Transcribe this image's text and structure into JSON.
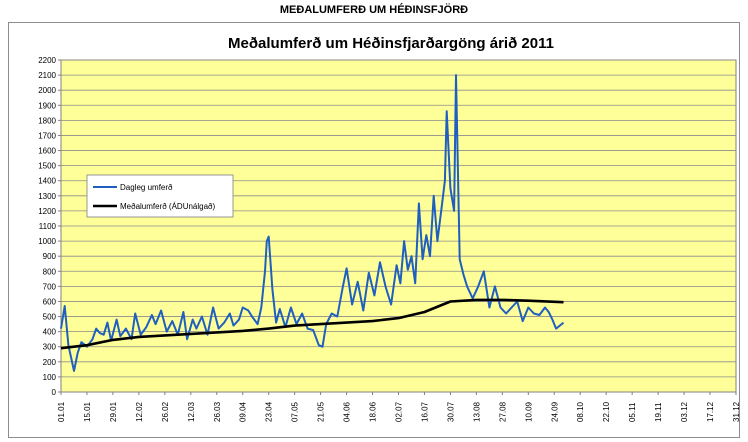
{
  "page": {
    "heading": "MEÐALUMFERÐ UM HÉÐINSFJÖRÐ"
  },
  "chart_data": {
    "type": "line",
    "title": "Meðalumferð um Héðinsfjarðargöng árið 2011",
    "xlabel": "",
    "ylabel": "",
    "ylim": [
      0,
      2200
    ],
    "yticks": [
      0,
      100,
      200,
      300,
      400,
      500,
      600,
      700,
      800,
      900,
      1000,
      1100,
      1200,
      1300,
      1400,
      1500,
      1600,
      1700,
      1800,
      1900,
      2000,
      2100,
      2200
    ],
    "x_tick_labels": [
      "01.01",
      "15.01",
      "29.01",
      "12.02",
      "26.02",
      "12.03",
      "26.03",
      "09.04",
      "23.04",
      "07.05",
      "21.05",
      "04.06",
      "18.06",
      "02.07",
      "16.07",
      "30.07",
      "13.08",
      "27.08",
      "10.09",
      "24.09",
      "08.10",
      "22.10",
      "05.11",
      "19.11",
      "03.12",
      "17.12",
      "31.12"
    ],
    "grid": {
      "horizontal": true,
      "vertical": false
    },
    "plot_background": "#FFFF99",
    "legend_position": "left",
    "series": [
      {
        "name": "Dagleg umferð",
        "color": "#1F5FBF",
        "x": [
          "01.01",
          "03.01",
          "05.01",
          "08.01",
          "10.01",
          "12.01",
          "15.01",
          "18.01",
          "20.01",
          "22.01",
          "24.01",
          "26.01",
          "28.01",
          "31.01",
          "02.02",
          "05.02",
          "08.02",
          "10.02",
          "13.02",
          "16.02",
          "19.02",
          "21.02",
          "24.02",
          "27.02",
          "02.03",
          "05.03",
          "08.03",
          "10.03",
          "13.03",
          "15.03",
          "18.03",
          "21.03",
          "24.03",
          "27.03",
          "30.03",
          "02.04",
          "04.04",
          "07.04",
          "09.04",
          "12.04",
          "14.04",
          "17.04",
          "19.04",
          "21.04",
          "22.04",
          "23.04",
          "25.04",
          "27.04",
          "29.04",
          "02.05",
          "05.05",
          "08.05",
          "11.05",
          "14.05",
          "17.05",
          "20.05",
          "22.05",
          "24.05",
          "27.05",
          "30.05",
          "02.06",
          "04.06",
          "07.06",
          "10.06",
          "13.06",
          "16.06",
          "19.06",
          "22.06",
          "25.06",
          "28.06",
          "01.07",
          "03.07",
          "05.07",
          "07.07",
          "09.07",
          "11.07",
          "13.07",
          "15.07",
          "17.07",
          "19.07",
          "21.07",
          "23.07",
          "25.07",
          "27.07",
          "28.07",
          "30.07",
          "01.08",
          "02.08",
          "04.08",
          "06.08",
          "08.08",
          "11.08",
          "14.08",
          "17.08",
          "20.08",
          "23.08",
          "26.08",
          "29.08",
          "01.09",
          "04.09",
          "07.09",
          "10.09",
          "13.09",
          "16.09",
          "19.09",
          "21.09",
          "23.09",
          "25.09",
          "27.09",
          "29.09"
        ],
        "y": [
          420,
          570,
          310,
          140,
          260,
          330,
          300,
          350,
          420,
          390,
          380,
          460,
          340,
          480,
          370,
          420,
          350,
          520,
          380,
          430,
          510,
          450,
          540,
          400,
          470,
          380,
          530,
          350,
          480,
          420,
          500,
          380,
          560,
          420,
          460,
          520,
          440,
          480,
          560,
          540,
          500,
          450,
          560,
          800,
          1000,
          1030,
          680,
          460,
          550,
          430,
          560,
          450,
          520,
          420,
          410,
          310,
          300,
          450,
          520,
          500,
          700,
          820,
          580,
          730,
          540,
          790,
          640,
          860,
          700,
          580,
          840,
          720,
          1000,
          810,
          900,
          720,
          1250,
          880,
          1040,
          900,
          1300,
          1000,
          1200,
          1400,
          1860,
          1350,
          1200,
          2100,
          880,
          780,
          700,
          620,
          700,
          800,
          560,
          700,
          560,
          520,
          560,
          600,
          470,
          560,
          520,
          510,
          560,
          530,
          480,
          420,
          440,
          460
        ]
      },
      {
        "name": "Meðalumferð (ÁDUnálgað)",
        "color": "#000000",
        "x": [
          "01.01",
          "15.01",
          "29.01",
          "12.02",
          "26.02",
          "12.03",
          "26.03",
          "09.04",
          "23.04",
          "07.05",
          "21.05",
          "04.06",
          "18.06",
          "02.07",
          "16.07",
          "30.07",
          "13.08",
          "27.08",
          "10.09",
          "29.09"
        ],
        "y": [
          290,
          310,
          345,
          365,
          375,
          385,
          395,
          405,
          420,
          440,
          450,
          460,
          470,
          490,
          530,
          600,
          610,
          610,
          605,
          595
        ]
      }
    ]
  }
}
